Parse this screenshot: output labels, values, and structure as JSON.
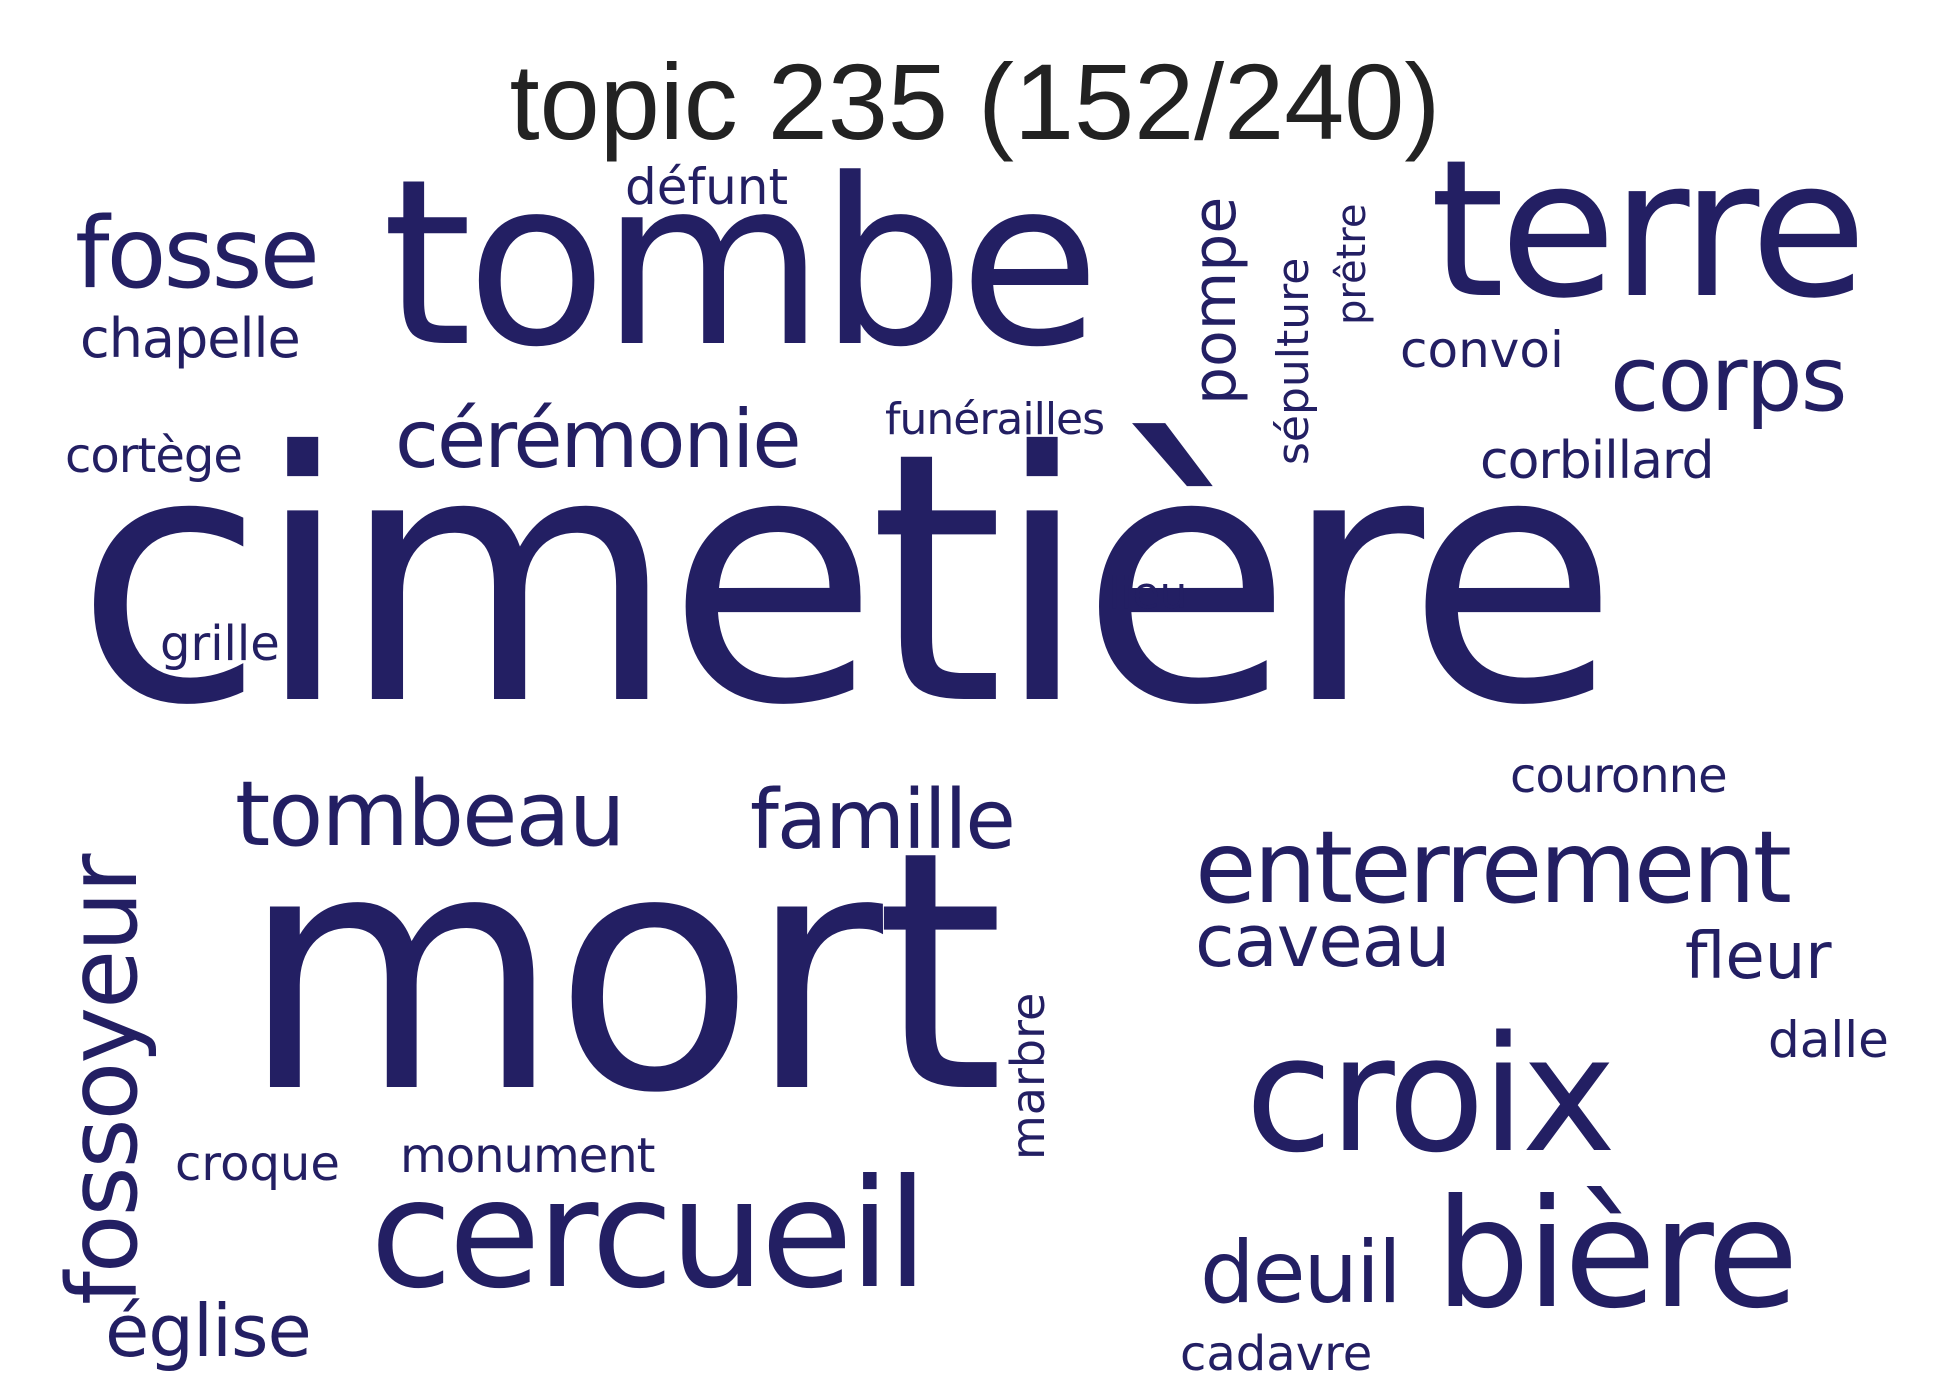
{
  "title": "topic 235 (152/240)",
  "word_color": "#231f63",
  "title_color": "#222222",
  "words": {
    "cimetiere": "cimetière",
    "mort": "mort",
    "tombe": "tombe",
    "terre": "terre",
    "cercueil": "cercueil",
    "croix": "croix",
    "biere": "bière",
    "enterrement": "enterrement",
    "fosse": "fosse",
    "ceremonie": "cérémonie",
    "corps": "corps",
    "tombeau": "tombeau",
    "famille": "famille",
    "fossoyeur": "fossoyeur",
    "caveau": "caveau",
    "deuil": "deuil",
    "eglise": "église",
    "pompe": "pompe",
    "chapelle": "chapelle",
    "defunt": "défunt",
    "sepulture": "sépulture",
    "pretre": "prêtre",
    "convoi": "convoi",
    "corbillard": "corbillard",
    "cortege": "cortège",
    "funerailles": "funérailles",
    "grille": "grille",
    "lieu": "lieu",
    "couronne": "couronne",
    "fleur": "fleur",
    "dalle": "dalle",
    "marbre": "marbre",
    "croque": "croque",
    "monument": "monument",
    "cadavre": "cadavre"
  }
}
